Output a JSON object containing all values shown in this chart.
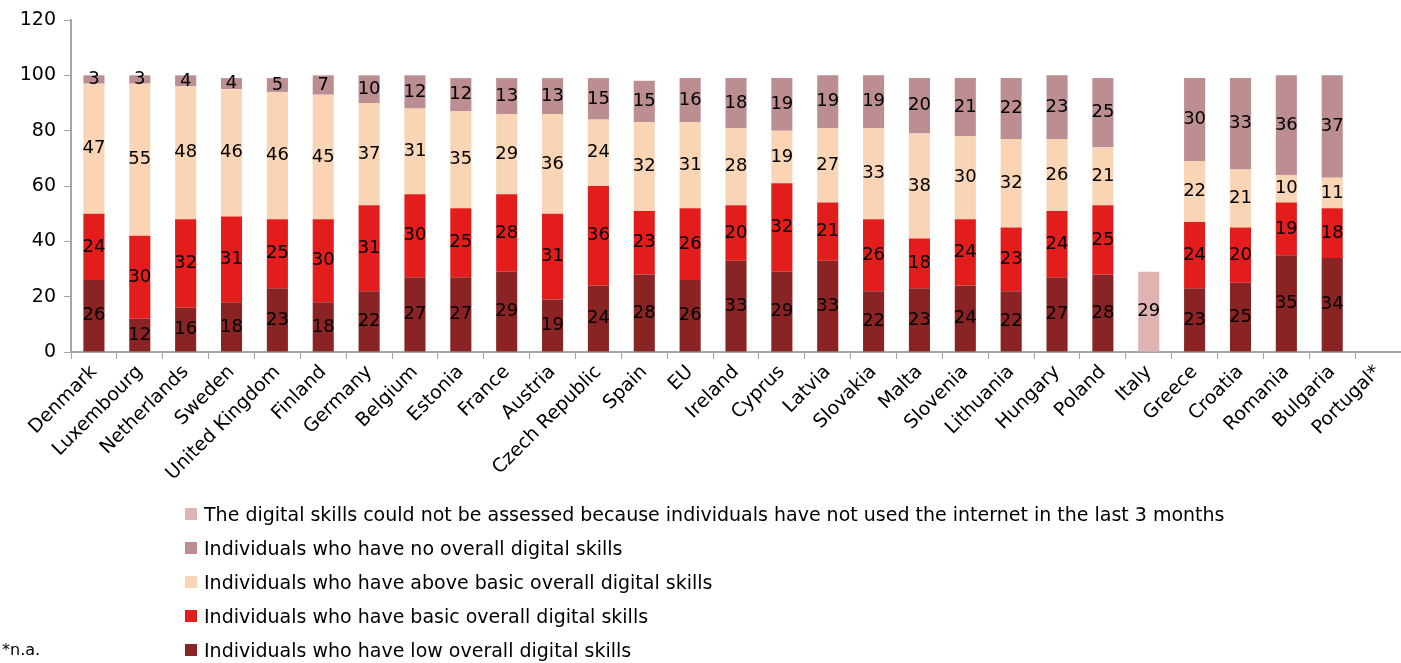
{
  "chart_data": {
    "type": "bar",
    "stacked": true,
    "data_labels": true,
    "grid": false,
    "legend": "bottom",
    "categories": [
      "Denmark",
      "Luxembourg",
      "Netherlands",
      "Sweden",
      "United Kingdom",
      "Finland",
      "Germany",
      "Belgium",
      "Estonia",
      "France",
      "Austria",
      "Czech Republic",
      "Spain",
      "EU",
      "Ireland",
      "Cyprus",
      "Latvia",
      "Slovakia",
      "Malta",
      "Slovenia",
      "Lithuania",
      "Hungary",
      "Poland",
      "Italy",
      "Greece",
      "Croatia",
      "Romania",
      "Bulgaria",
      "Portugal*"
    ],
    "ylim": [
      0,
      120
    ],
    "yticks": [
      0,
      20,
      40,
      60,
      80,
      100,
      120
    ],
    "series": [
      {
        "name": "Individuals who have low overall digital skills",
        "color": "#8a2424",
        "values": [
          26,
          12,
          16,
          18,
          23,
          18,
          22,
          27,
          27,
          29,
          19,
          24,
          28,
          26,
          33,
          29,
          33,
          22,
          23,
          24,
          22,
          27,
          28,
          null,
          23,
          25,
          35,
          34,
          null
        ]
      },
      {
        "name": "Individuals who have basic overall digital skills",
        "color": "#e31d1b",
        "values": [
          24,
          30,
          32,
          31,
          25,
          30,
          31,
          30,
          25,
          28,
          31,
          36,
          23,
          26,
          20,
          32,
          21,
          26,
          18,
          24,
          23,
          24,
          25,
          null,
          24,
          20,
          19,
          18,
          null
        ]
      },
      {
        "name": "Individuals who have above basic overall digital skills",
        "color": "#f9d5b5",
        "values": [
          47,
          55,
          48,
          46,
          46,
          45,
          37,
          31,
          35,
          29,
          36,
          24,
          32,
          31,
          28,
          19,
          27,
          33,
          38,
          30,
          32,
          26,
          21,
          null,
          22,
          21,
          10,
          11,
          null
        ]
      },
      {
        "name": "Individuals who have no overall digital skills",
        "color": "#bc8e91",
        "values": [
          3,
          3,
          4,
          4,
          5,
          7,
          10,
          12,
          12,
          13,
          13,
          15,
          15,
          16,
          18,
          19,
          19,
          19,
          20,
          21,
          22,
          23,
          25,
          null,
          30,
          33,
          36,
          37,
          null
        ]
      },
      {
        "name": "The digital skills could not be assessed because individuals have not used the internet in the last 3 months",
        "color": "#e0b3b3",
        "values": [
          null,
          null,
          null,
          null,
          null,
          null,
          null,
          null,
          null,
          null,
          null,
          null,
          null,
          null,
          null,
          null,
          null,
          null,
          null,
          null,
          null,
          null,
          null,
          29,
          null,
          null,
          null,
          null,
          null
        ]
      }
    ],
    "annotations": [
      "*n.a."
    ]
  }
}
